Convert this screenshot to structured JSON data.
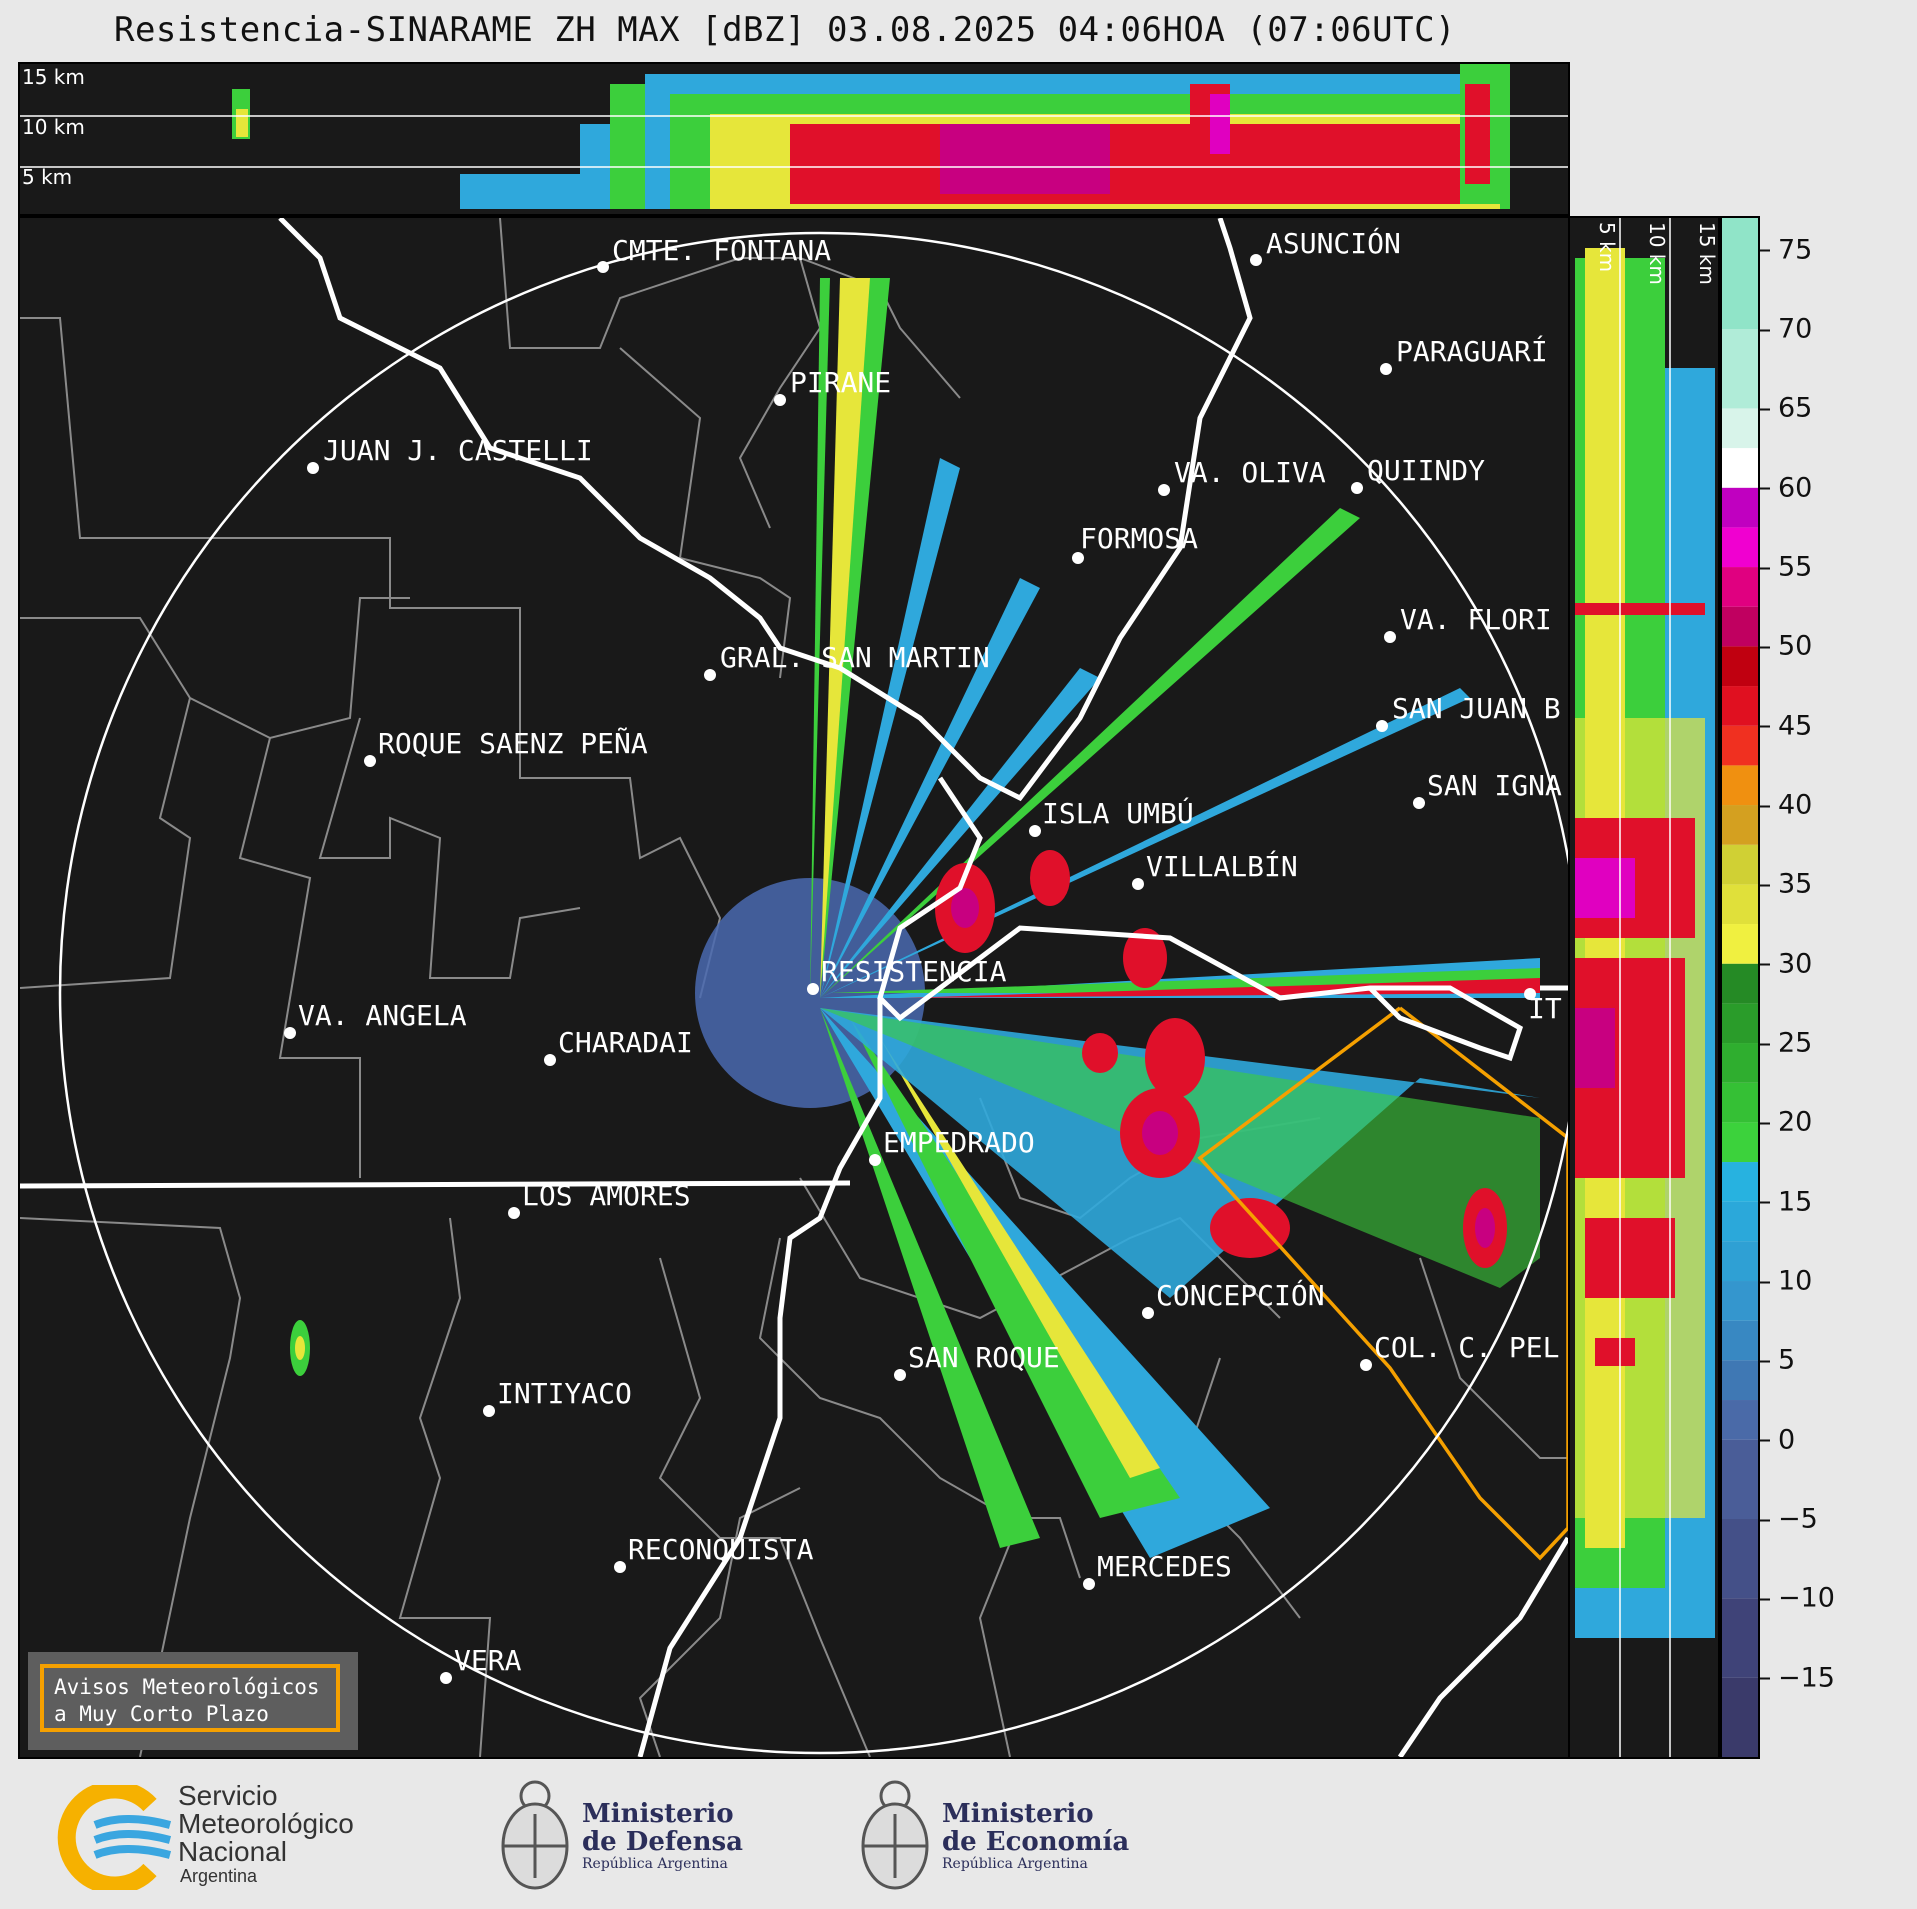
{
  "title": "Resistencia-SINARAME ZH MAX [dBZ] 03.08.2025 04:06HOA (07:06UTC)",
  "top_strip": {
    "height_labels": [
      "15 km",
      "10 km",
      "5 km"
    ]
  },
  "right_strip": {
    "height_labels": [
      "5 km",
      "10 km",
      "15 km"
    ]
  },
  "colorbar": {
    "unit": "dBZ",
    "ticks": [
      "75",
      "70",
      "65",
      "60",
      "55",
      "50",
      "45",
      "40",
      "35",
      "30",
      "25",
      "20",
      "15",
      "10",
      "5",
      "0",
      "−5",
      "−10",
      "−15"
    ],
    "range": [
      -20,
      77
    ]
  },
  "cities": [
    {
      "name": "CMTE. FONTANA"
    },
    {
      "name": "ASUNCIÓN"
    },
    {
      "name": "PARAGUARÍ"
    },
    {
      "name": "PIRANE"
    },
    {
      "name": "JUAN J. CASTELLI"
    },
    {
      "name": "VA. OLIVA"
    },
    {
      "name": "QUIINDY"
    },
    {
      "name": "FORMOSA"
    },
    {
      "name": "VA. FLORI"
    },
    {
      "name": "GRAL. SAN MARTIN"
    },
    {
      "name": "SAN JUAN B"
    },
    {
      "name": "ROQUE SAENZ PEÑA"
    },
    {
      "name": "SAN IGNA"
    },
    {
      "name": "ISLA UMBÚ"
    },
    {
      "name": "VILLALBÍN"
    },
    {
      "name": "RESISTENCIA"
    },
    {
      "name": "VA. ANGELA"
    },
    {
      "name": "CHARADAI"
    },
    {
      "name": "IT"
    },
    {
      "name": "EMPEDRADO"
    },
    {
      "name": "LOS AMORES"
    },
    {
      "name": "CONCEPCIÓN"
    },
    {
      "name": "COL. C. PEL"
    },
    {
      "name": "SAN ROQUE"
    },
    {
      "name": "INTIYACO"
    },
    {
      "name": "RECONQUISTA"
    },
    {
      "name": "MERCEDES"
    },
    {
      "name": "VERA"
    }
  ],
  "warning_box": {
    "line1": "Avisos Meteorológicos",
    "line2": "a Muy Corto Plazo"
  },
  "logos": {
    "smn": {
      "line1": "Servicio",
      "line2": "Meteorológico",
      "line3": "Nacional",
      "line4": "Argentina"
    },
    "defensa": {
      "line1": "Ministerio",
      "line2": "de Defensa",
      "line3": "República Argentina"
    },
    "economia": {
      "line1": "Ministerio",
      "line2": "de Economía",
      "line3": "República Argentina"
    }
  }
}
